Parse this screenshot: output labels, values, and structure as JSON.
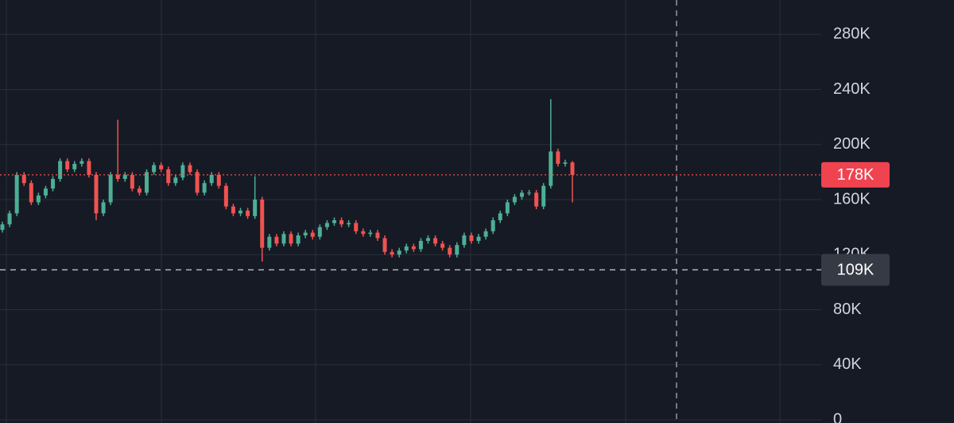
{
  "chart_data": {
    "type": "candlestick",
    "open": [
      138000,
      142000,
      150000,
      178000,
      172000,
      158000,
      163000,
      168000,
      175000,
      188000,
      182000,
      186000,
      188000,
      178000,
      150000,
      158000,
      178000,
      175000,
      178000,
      168000,
      165000,
      180000,
      185000,
      182000,
      172000,
      176000,
      185000,
      180000,
      165000,
      172000,
      178000,
      170000,
      155000,
      150000,
      152000,
      148000,
      160000,
      125000,
      133000,
      128000,
      135000,
      128000,
      134000,
      136000,
      133000,
      140000,
      143000,
      145000,
      142000,
      143000,
      137000,
      135000,
      136000,
      132000,
      122000,
      120000,
      123000,
      126000,
      124000,
      130000,
      132000,
      128000,
      125000,
      120000,
      127000,
      134000,
      130000,
      133000,
      137000,
      145000,
      150000,
      158000,
      162000,
      165000,
      165000,
      155000,
      170000,
      195000,
      186000,
      187000
    ],
    "high": [
      144000,
      152000,
      180000,
      180000,
      174000,
      165000,
      170000,
      177000,
      190000,
      190000,
      188000,
      190000,
      190000,
      180000,
      160000,
      180000,
      218000,
      180000,
      180000,
      170000,
      182000,
      187000,
      187000,
      184000,
      178000,
      187000,
      187000,
      182000,
      174000,
      180000,
      180000,
      172000,
      157000,
      154000,
      154000,
      177000,
      162000,
      135000,
      135000,
      137000,
      137000,
      136000,
      138000,
      138000,
      142000,
      145000,
      147000,
      147000,
      145000,
      145000,
      139000,
      138000,
      138000,
      134000,
      124000,
      125000,
      128000,
      128000,
      132000,
      134000,
      134000,
      130000,
      127000,
      129000,
      136000,
      136000,
      135000,
      139000,
      147000,
      152000,
      160000,
      164000,
      167000,
      167000,
      167000,
      172000,
      233000,
      197000,
      189000,
      188000
    ],
    "low": [
      136000,
      140000,
      148000,
      170000,
      156000,
      156000,
      161000,
      166000,
      173000,
      180000,
      180000,
      184000,
      176000,
      145000,
      148000,
      156000,
      173000,
      173000,
      166000,
      163000,
      163000,
      178000,
      180000,
      170000,
      170000,
      174000,
      178000,
      163000,
      163000,
      170000,
      168000,
      153000,
      148000,
      148000,
      146000,
      146000,
      115000,
      123000,
      126000,
      126000,
      126000,
      126000,
      132000,
      131000,
      131000,
      138000,
      141000,
      140000,
      140000,
      135000,
      133000,
      133000,
      130000,
      120000,
      118000,
      118000,
      121000,
      122000,
      122000,
      128000,
      126000,
      123000,
      118000,
      118000,
      125000,
      128000,
      128000,
      131000,
      135000,
      143000,
      148000,
      156000,
      160000,
      163000,
      153000,
      153000,
      168000,
      184000,
      184000,
      158000
    ],
    "close": [
      142000,
      150000,
      178000,
      172000,
      158000,
      163000,
      168000,
      175000,
      188000,
      182000,
      186000,
      188000,
      178000,
      150000,
      158000,
      178000,
      175000,
      178000,
      168000,
      165000,
      180000,
      185000,
      182000,
      172000,
      176000,
      185000,
      180000,
      165000,
      172000,
      178000,
      170000,
      155000,
      150000,
      152000,
      148000,
      160000,
      125000,
      133000,
      128000,
      135000,
      128000,
      134000,
      136000,
      133000,
      140000,
      143000,
      145000,
      142000,
      143000,
      137000,
      135000,
      136000,
      132000,
      122000,
      120000,
      123000,
      126000,
      124000,
      130000,
      132000,
      128000,
      125000,
      120000,
      127000,
      134000,
      130000,
      133000,
      137000,
      145000,
      150000,
      158000,
      162000,
      165000,
      165000,
      155000,
      170000,
      195000,
      186000,
      187000,
      178000
    ],
    "up_color": "#4caf95",
    "down_color": "#ef5350",
    "ylim": [
      -2300,
      305000
    ],
    "yticks": [
      0,
      {
        "value": 40000,
        "label": "40K"
      },
      {
        "value": 80000,
        "label": "80K"
      },
      {
        "value": 120000,
        "label": "120K"
      },
      {
        "value": 160000,
        "label": "160K"
      },
      {
        "value": 200000,
        "label": "200K"
      },
      {
        "value": 240000,
        "label": "240K"
      },
      {
        "value": 280000,
        "label": "280K"
      }
    ],
    "grid": true,
    "last_price": {
      "value": 178000,
      "label": "178K"
    },
    "crosshair": {
      "value": 109000,
      "label": "109K"
    }
  }
}
